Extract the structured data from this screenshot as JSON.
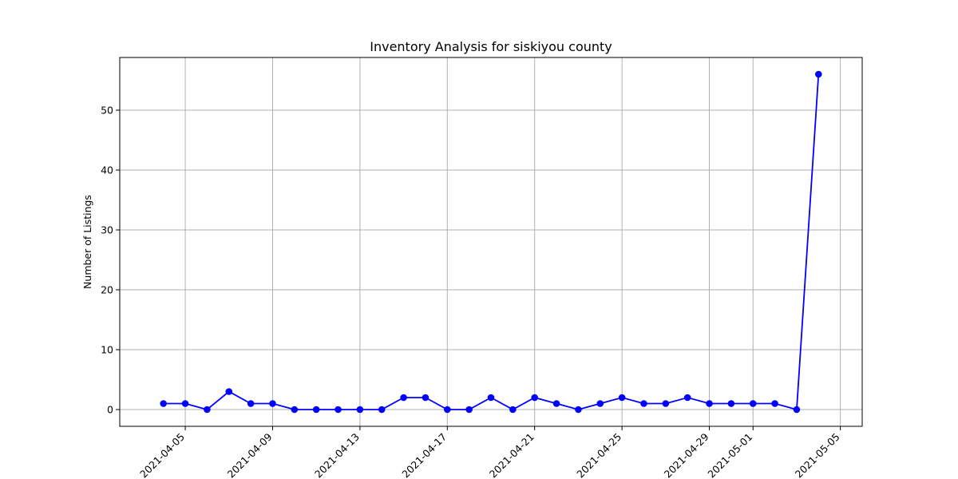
{
  "chart_data": {
    "type": "line",
    "title": "Inventory Analysis for siskiyou county",
    "xlabel": "",
    "ylabel": "Number of Listings",
    "grid": true,
    "x_type": "date",
    "xlim": [
      "2021-04-02",
      "2021-05-06"
    ],
    "ylim": [
      -2.8,
      58.8
    ],
    "x_ticks": [
      "2021-04-05",
      "2021-04-09",
      "2021-04-13",
      "2021-04-17",
      "2021-04-21",
      "2021-04-25",
      "2021-04-29",
      "2021-05-01",
      "2021-05-05"
    ],
    "y_ticks": [
      0,
      10,
      20,
      30,
      40,
      50
    ],
    "series": [
      {
        "color": "#0000ff",
        "marker": "circle",
        "points": [
          {
            "x": "2021-04-04",
            "y": 1
          },
          {
            "x": "2021-04-05",
            "y": 1
          },
          {
            "x": "2021-04-06",
            "y": 0
          },
          {
            "x": "2021-04-07",
            "y": 3
          },
          {
            "x": "2021-04-08",
            "y": 1
          },
          {
            "x": "2021-04-09",
            "y": 1
          },
          {
            "x": "2021-04-10",
            "y": 0
          },
          {
            "x": "2021-04-11",
            "y": 0
          },
          {
            "x": "2021-04-12",
            "y": 0
          },
          {
            "x": "2021-04-13",
            "y": 0
          },
          {
            "x": "2021-04-14",
            "y": 0
          },
          {
            "x": "2021-04-15",
            "y": 2
          },
          {
            "x": "2021-04-16",
            "y": 2
          },
          {
            "x": "2021-04-17",
            "y": 0
          },
          {
            "x": "2021-04-18",
            "y": 0
          },
          {
            "x": "2021-04-19",
            "y": 2
          },
          {
            "x": "2021-04-20",
            "y": 0
          },
          {
            "x": "2021-04-21",
            "y": 2
          },
          {
            "x": "2021-04-22",
            "y": 1
          },
          {
            "x": "2021-04-23",
            "y": 0
          },
          {
            "x": "2021-04-24",
            "y": 1
          },
          {
            "x": "2021-04-25",
            "y": 2
          },
          {
            "x": "2021-04-26",
            "y": 1
          },
          {
            "x": "2021-04-27",
            "y": 1
          },
          {
            "x": "2021-04-28",
            "y": 2
          },
          {
            "x": "2021-04-29",
            "y": 1
          },
          {
            "x": "2021-04-30",
            "y": 1
          },
          {
            "x": "2021-05-01",
            "y": 1
          },
          {
            "x": "2021-05-02",
            "y": 1
          },
          {
            "x": "2021-05-03",
            "y": 0
          },
          {
            "x": "2021-05-04",
            "y": 56
          }
        ]
      }
    ]
  }
}
